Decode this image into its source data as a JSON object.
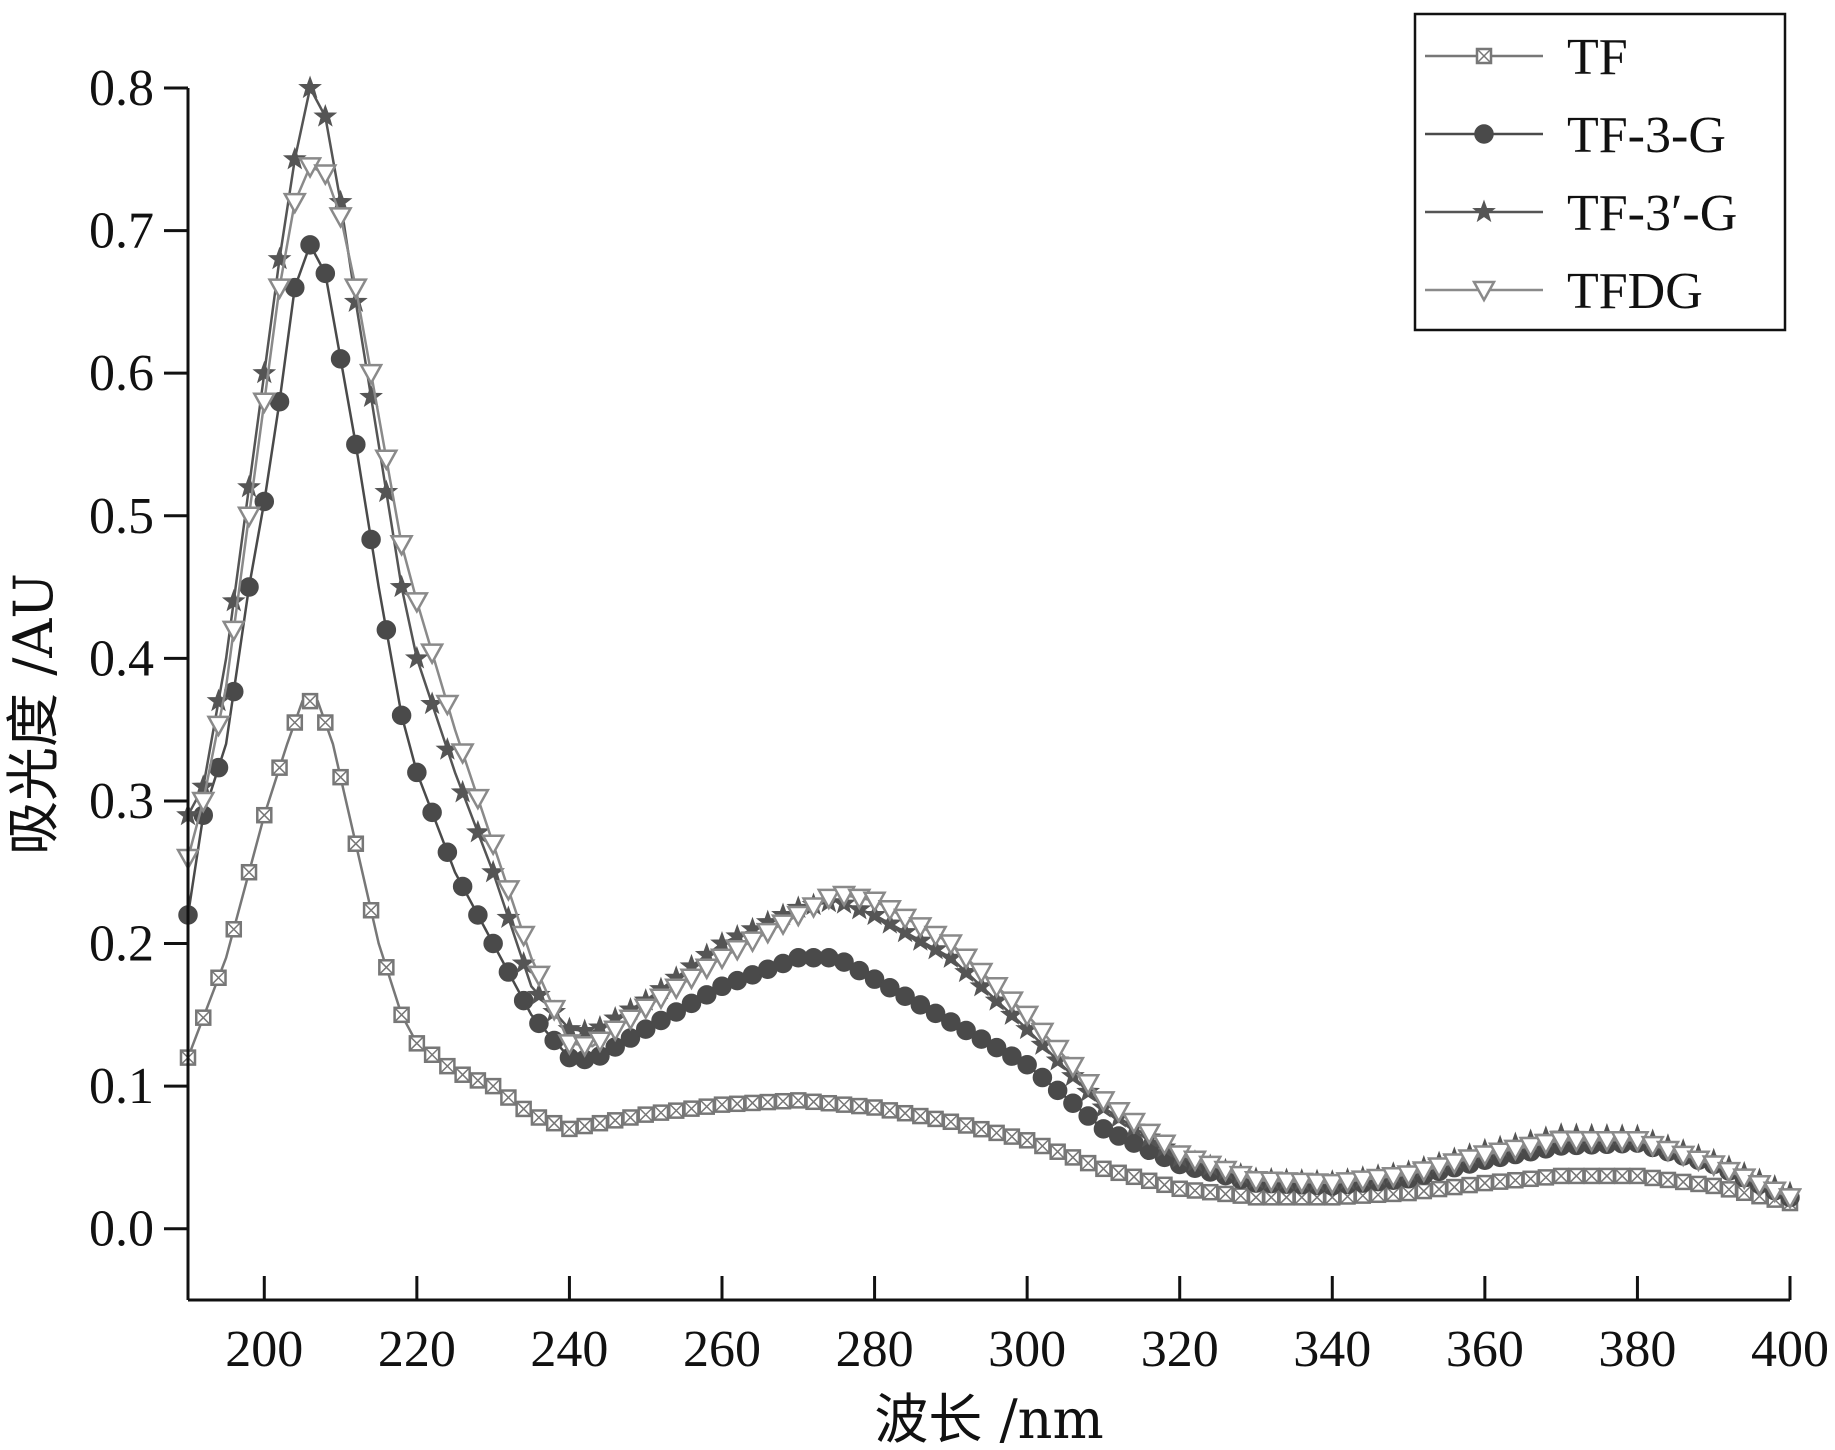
{
  "chart_data": {
    "type": "line",
    "xlabel": "波长 /nm",
    "ylabel": "吸光度 /AU",
    "xlim": [
      190,
      400
    ],
    "ylim": [
      -0.05,
      0.8
    ],
    "x_ticks": [
      "200",
      "220",
      "240",
      "260",
      "280",
      "300",
      "320",
      "340",
      "360",
      "380",
      "400"
    ],
    "y_ticks": [
      "0.0",
      "0.1",
      "0.2",
      "0.3",
      "0.4",
      "0.5",
      "0.6",
      "0.7",
      "0.8"
    ],
    "grid": false,
    "legend_position": "top-right",
    "series": [
      {
        "name": "TF",
        "marker": "square-cross",
        "color": "#777777",
        "points": [
          [
            190,
            0.12
          ],
          [
            195,
            0.19
          ],
          [
            200,
            0.29
          ],
          [
            203,
            0.34
          ],
          [
            205,
            0.37
          ],
          [
            207,
            0.37
          ],
          [
            209,
            0.34
          ],
          [
            212,
            0.27
          ],
          [
            215,
            0.2
          ],
          [
            218,
            0.15
          ],
          [
            220,
            0.13
          ],
          [
            225,
            0.11
          ],
          [
            230,
            0.1
          ],
          [
            235,
            0.08
          ],
          [
            240,
            0.07
          ],
          [
            245,
            0.075
          ],
          [
            250,
            0.08
          ],
          [
            260,
            0.087
          ],
          [
            270,
            0.09
          ],
          [
            280,
            0.085
          ],
          [
            290,
            0.075
          ],
          [
            300,
            0.062
          ],
          [
            310,
            0.042
          ],
          [
            320,
            0.028
          ],
          [
            330,
            0.022
          ],
          [
            340,
            0.022
          ],
          [
            350,
            0.025
          ],
          [
            360,
            0.032
          ],
          [
            370,
            0.037
          ],
          [
            380,
            0.037
          ],
          [
            390,
            0.03
          ],
          [
            400,
            0.018
          ]
        ]
      },
      {
        "name": "TF-3-G",
        "marker": "circle",
        "color": "#4a4a4a",
        "points": [
          [
            190,
            0.22
          ],
          [
            192,
            0.29
          ],
          [
            195,
            0.34
          ],
          [
            198,
            0.45
          ],
          [
            200,
            0.51
          ],
          [
            202,
            0.58
          ],
          [
            204,
            0.66
          ],
          [
            206,
            0.69
          ],
          [
            208,
            0.67
          ],
          [
            210,
            0.61
          ],
          [
            212,
            0.55
          ],
          [
            215,
            0.45
          ],
          [
            218,
            0.36
          ],
          [
            220,
            0.32
          ],
          [
            225,
            0.25
          ],
          [
            230,
            0.2
          ],
          [
            235,
            0.15
          ],
          [
            240,
            0.12
          ],
          [
            243,
            0.118
          ],
          [
            250,
            0.14
          ],
          [
            260,
            0.17
          ],
          [
            270,
            0.19
          ],
          [
            275,
            0.19
          ],
          [
            280,
            0.175
          ],
          [
            290,
            0.145
          ],
          [
            300,
            0.115
          ],
          [
            310,
            0.07
          ],
          [
            320,
            0.045
          ],
          [
            330,
            0.032
          ],
          [
            340,
            0.03
          ],
          [
            350,
            0.035
          ],
          [
            360,
            0.048
          ],
          [
            370,
            0.058
          ],
          [
            380,
            0.06
          ],
          [
            390,
            0.045
          ],
          [
            400,
            0.022
          ]
        ]
      },
      {
        "name": "TF-3′-G",
        "marker": "star",
        "color": "#555555",
        "points": [
          [
            190,
            0.29
          ],
          [
            192,
            0.31
          ],
          [
            195,
            0.4
          ],
          [
            198,
            0.52
          ],
          [
            200,
            0.6
          ],
          [
            202,
            0.68
          ],
          [
            204,
            0.75
          ],
          [
            206,
            0.8
          ],
          [
            208,
            0.78
          ],
          [
            210,
            0.72
          ],
          [
            212,
            0.65
          ],
          [
            215,
            0.55
          ],
          [
            218,
            0.45
          ],
          [
            220,
            0.4
          ],
          [
            225,
            0.32
          ],
          [
            230,
            0.25
          ],
          [
            235,
            0.17
          ],
          [
            240,
            0.14
          ],
          [
            243,
            0.138
          ],
          [
            250,
            0.16
          ],
          [
            260,
            0.2
          ],
          [
            270,
            0.225
          ],
          [
            275,
            0.23
          ],
          [
            280,
            0.22
          ],
          [
            290,
            0.19
          ],
          [
            300,
            0.14
          ],
          [
            310,
            0.085
          ],
          [
            320,
            0.05
          ],
          [
            330,
            0.035
          ],
          [
            340,
            0.033
          ],
          [
            350,
            0.04
          ],
          [
            360,
            0.055
          ],
          [
            370,
            0.066
          ],
          [
            380,
            0.065
          ],
          [
            390,
            0.048
          ],
          [
            400,
            0.025
          ]
        ]
      },
      {
        "name": "TFDG",
        "marker": "triangle-down",
        "color": "#8a8a8a",
        "points": [
          [
            190,
            0.26
          ],
          [
            192,
            0.3
          ],
          [
            195,
            0.38
          ],
          [
            198,
            0.5
          ],
          [
            200,
            0.58
          ],
          [
            202,
            0.66
          ],
          [
            204,
            0.72
          ],
          [
            206,
            0.745
          ],
          [
            208,
            0.74
          ],
          [
            210,
            0.71
          ],
          [
            212,
            0.66
          ],
          [
            215,
            0.57
          ],
          [
            218,
            0.48
          ],
          [
            220,
            0.44
          ],
          [
            225,
            0.35
          ],
          [
            230,
            0.27
          ],
          [
            235,
            0.19
          ],
          [
            240,
            0.13
          ],
          [
            243,
            0.128
          ],
          [
            250,
            0.155
          ],
          [
            260,
            0.19
          ],
          [
            270,
            0.22
          ],
          [
            275,
            0.235
          ],
          [
            280,
            0.23
          ],
          [
            290,
            0.2
          ],
          [
            300,
            0.15
          ],
          [
            310,
            0.09
          ],
          [
            320,
            0.052
          ],
          [
            330,
            0.034
          ],
          [
            340,
            0.032
          ],
          [
            350,
            0.038
          ],
          [
            360,
            0.052
          ],
          [
            370,
            0.062
          ],
          [
            380,
            0.062
          ],
          [
            390,
            0.045
          ],
          [
            400,
            0.022
          ]
        ]
      }
    ]
  }
}
